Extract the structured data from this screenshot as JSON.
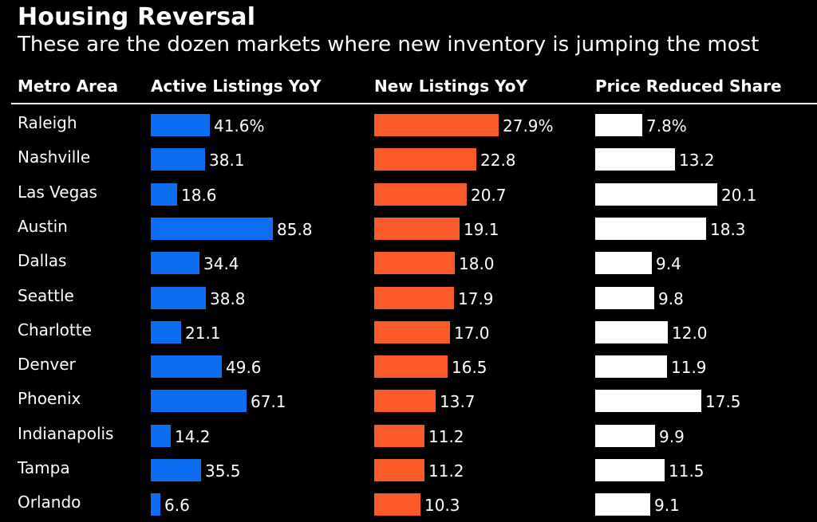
{
  "title": "Housing Reversal",
  "subtitle": "These are the dozen markets where new inventory is jumping the most",
  "headers": {
    "metro": "Metro Area",
    "active": "Active Listings YoY",
    "new": "New Listings YoY",
    "price": "Price Reduced Share"
  },
  "colors": {
    "background": "#000000",
    "active": "#0e6ef2",
    "new": "#fa5a28",
    "price": "#ffffff"
  },
  "chart_data": {
    "type": "table",
    "columns": [
      "Metro Area",
      "Active Listings YoY",
      "New Listings YoY",
      "Price Reduced Share"
    ],
    "rows": [
      {
        "metro": "Raleigh",
        "active": 41.6,
        "new": 27.9,
        "price": 7.8,
        "active_label": "41.6%",
        "new_label": "27.9%",
        "price_label": "7.8%"
      },
      {
        "metro": "Nashville",
        "active": 38.1,
        "new": 22.8,
        "price": 13.2,
        "active_label": "38.1",
        "new_label": "22.8",
        "price_label": "13.2"
      },
      {
        "metro": "Las Vegas",
        "active": 18.6,
        "new": 20.7,
        "price": 20.1,
        "active_label": "18.6",
        "new_label": "20.7",
        "price_label": "20.1"
      },
      {
        "metro": "Austin",
        "active": 85.8,
        "new": 19.1,
        "price": 18.3,
        "active_label": "85.8",
        "new_label": "19.1",
        "price_label": "18.3"
      },
      {
        "metro": "Dallas",
        "active": 34.4,
        "new": 18.0,
        "price": 9.4,
        "active_label": "34.4",
        "new_label": "18.0",
        "price_label": "9.4"
      },
      {
        "metro": "Seattle",
        "active": 38.8,
        "new": 17.9,
        "price": 9.8,
        "active_label": "38.8",
        "new_label": "17.9",
        "price_label": "9.8"
      },
      {
        "metro": "Charlotte",
        "active": 21.1,
        "new": 17.0,
        "price": 12.0,
        "active_label": "21.1",
        "new_label": "17.0",
        "price_label": "12.0"
      },
      {
        "metro": "Denver",
        "active": 49.6,
        "new": 16.5,
        "price": 11.9,
        "active_label": "49.6",
        "new_label": "16.5",
        "price_label": "11.9"
      },
      {
        "metro": "Phoenix",
        "active": 67.1,
        "new": 13.7,
        "price": 17.5,
        "active_label": "67.1",
        "new_label": "13.7",
        "price_label": "17.5"
      },
      {
        "metro": "Indianapolis",
        "active": 14.2,
        "new": 11.2,
        "price": 9.9,
        "active_label": "14.2",
        "new_label": "11.2",
        "price_label": "9.9"
      },
      {
        "metro": "Tampa",
        "active": 35.5,
        "new": 11.2,
        "price": 11.5,
        "active_label": "35.5",
        "new_label": "11.2",
        "price_label": "11.5"
      },
      {
        "metro": "Orlando",
        "active": 6.6,
        "new": 10.3,
        "price": 9.1,
        "active_label": "6.6",
        "new_label": "10.3",
        "price_label": "9.1"
      }
    ]
  }
}
